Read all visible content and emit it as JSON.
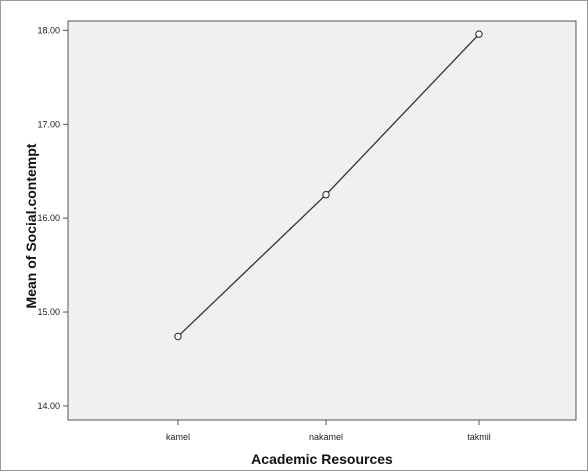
{
  "chart_data": {
    "type": "line",
    "categories": [
      "kamel",
      "nakamel",
      "takmil"
    ],
    "series": [
      {
        "values": [
          14.74,
          16.25,
          17.96
        ]
      }
    ],
    "xlabel": "Academic Resources",
    "ylabel": "Mean of Social.contempt",
    "ylim": [
      13.85,
      18.1
    ],
    "yticks": [
      14.0,
      15.0,
      16.0,
      17.0,
      18.0
    ],
    "ytick_labels": [
      "14.00",
      "15.00",
      "16.00",
      "17.00",
      "18.00"
    ],
    "grid": false,
    "colors": {
      "plot_bg": "#f0f0f0",
      "line": "#333333",
      "marker_fill": "#ffffff",
      "axis": "#555555"
    }
  }
}
